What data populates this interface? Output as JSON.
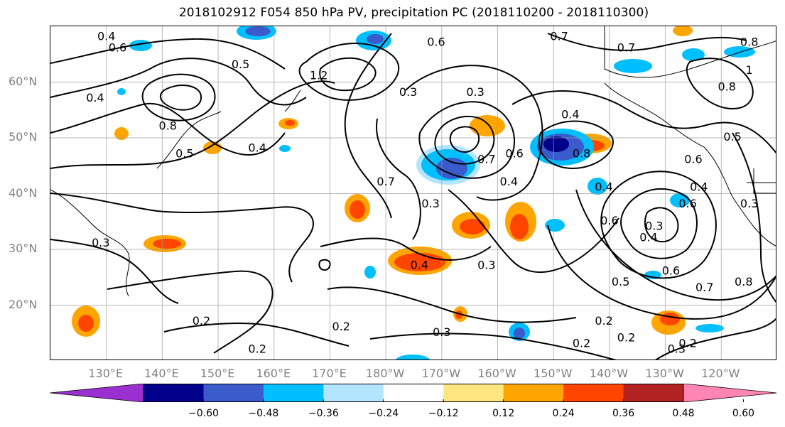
{
  "title": "2018102912 F054 850 hPa PV, precipitation PC (2018110200 - 2018110300)",
  "map": {
    "lat_labels": [
      {
        "text": "60°N",
        "lat": 60
      },
      {
        "text": "50°N",
        "lat": 50
      },
      {
        "text": "40°N",
        "lat": 40
      },
      {
        "text": "30°N",
        "lat": 30
      },
      {
        "text": "20°N",
        "lat": 20
      }
    ],
    "lon_labels": [
      {
        "text": "130°E",
        "lon": 130
      },
      {
        "text": "140°E",
        "lon": 140
      },
      {
        "text": "150°E",
        "lon": 150
      },
      {
        "text": "160°E",
        "lon": 160
      },
      {
        "text": "170°E",
        "lon": 170
      },
      {
        "text": "180°W",
        "lon": 180
      },
      {
        "text": "170°W",
        "lon": 190
      },
      {
        "text": "160°W",
        "lon": 200
      },
      {
        "text": "150°W",
        "lon": 210
      },
      {
        "text": "140°W",
        "lon": 220
      },
      {
        "text": "130°W",
        "lon": 230
      },
      {
        "text": "120°W",
        "lon": 240
      }
    ],
    "extent": {
      "lon_min": 120,
      "lon_max": 250,
      "lat_min": 10,
      "lat_max": 70
    },
    "contour_labels": [
      {
        "text": "0.4",
        "lon": 130,
        "lat": 68
      },
      {
        "text": "0.6",
        "lon": 132,
        "lat": 66
      },
      {
        "text": "0.5",
        "lon": 154,
        "lat": 63
      },
      {
        "text": "0.4",
        "lon": 128,
        "lat": 57
      },
      {
        "text": "0.8",
        "lon": 141,
        "lat": 52
      },
      {
        "text": "0.5",
        "lon": 144,
        "lat": 47
      },
      {
        "text": "0.4",
        "lon": 157,
        "lat": 48
      },
      {
        "text": "1.2",
        "lon": 168,
        "lat": 61
      },
      {
        "text": "0.6",
        "lon": 189,
        "lat": 67
      },
      {
        "text": "0.3",
        "lon": 184,
        "lat": 58
      },
      {
        "text": "0.3",
        "lon": 196,
        "lat": 58
      },
      {
        "text": "0.7",
        "lon": 198,
        "lat": 46
      },
      {
        "text": "0.6",
        "lon": 203,
        "lat": 47
      },
      {
        "text": "0.4",
        "lon": 202,
        "lat": 42
      },
      {
        "text": "0.7",
        "lon": 180,
        "lat": 42
      },
      {
        "text": "0.3",
        "lon": 188,
        "lat": 38
      },
      {
        "text": "0.7",
        "lon": 211,
        "lat": 68
      },
      {
        "text": "0.7",
        "lon": 223,
        "lat": 66
      },
      {
        "text": "0.4",
        "lon": 213,
        "lat": 54
      },
      {
        "text": "0.8",
        "lon": 215,
        "lat": 47
      },
      {
        "text": "0.4",
        "lon": 219,
        "lat": 41
      },
      {
        "text": "0.6",
        "lon": 220,
        "lat": 35
      },
      {
        "text": "0.3",
        "lon": 228,
        "lat": 34
      },
      {
        "text": "0.4",
        "lon": 227,
        "lat": 32
      },
      {
        "text": "0.6",
        "lon": 234,
        "lat": 38
      },
      {
        "text": "0.6",
        "lon": 231,
        "lat": 26
      },
      {
        "text": "0.5",
        "lon": 222,
        "lat": 24
      },
      {
        "text": "0.6",
        "lon": 235,
        "lat": 46
      },
      {
        "text": "0.5",
        "lon": 242,
        "lat": 50
      },
      {
        "text": "0.4",
        "lon": 236,
        "lat": 41
      },
      {
        "text": "0.7",
        "lon": 237,
        "lat": 23
      },
      {
        "text": "0.8",
        "lon": 244,
        "lat": 24
      },
      {
        "text": "0.8",
        "lon": 245,
        "lat": 67
      },
      {
        "text": "1",
        "lon": 245,
        "lat": 62
      },
      {
        "text": "0.8",
        "lon": 241,
        "lat": 59
      },
      {
        "text": "0.3",
        "lon": 245,
        "lat": 38
      },
      {
        "text": "0.3",
        "lon": 129,
        "lat": 31
      },
      {
        "text": "0.2",
        "lon": 147,
        "lat": 17
      },
      {
        "text": "0.2",
        "lon": 172,
        "lat": 16
      },
      {
        "text": "0.2",
        "lon": 157,
        "lat": 12
      },
      {
        "text": "0.4",
        "lon": 186,
        "lat": 27
      },
      {
        "text": "0.3",
        "lon": 198,
        "lat": 27
      },
      {
        "text": "0.3",
        "lon": 190,
        "lat": 15
      },
      {
        "text": "0.2",
        "lon": 219,
        "lat": 17
      },
      {
        "text": "0.2",
        "lon": 215,
        "lat": 13
      },
      {
        "text": "0.2",
        "lon": 223,
        "lat": 14
      },
      {
        "text": "0.3",
        "lon": 232,
        "lat": 12
      },
      {
        "text": "0.2",
        "lon": 234,
        "lat": 13
      }
    ]
  },
  "colorbar": {
    "ticks": [
      "−0.60",
      "−0.48",
      "−0.36",
      "−0.24",
      "−0.12",
      "0.12",
      "0.24",
      "0.36",
      "0.48",
      "0.60"
    ],
    "colors": [
      "#9b30d0",
      "#00008b",
      "#3a5bcc",
      "#00bfff",
      "#b3e5ff",
      "#ffffff",
      "#ffe680",
      "#ffa500",
      "#ff4500",
      "#b22222",
      "#ff85b3"
    ]
  }
}
